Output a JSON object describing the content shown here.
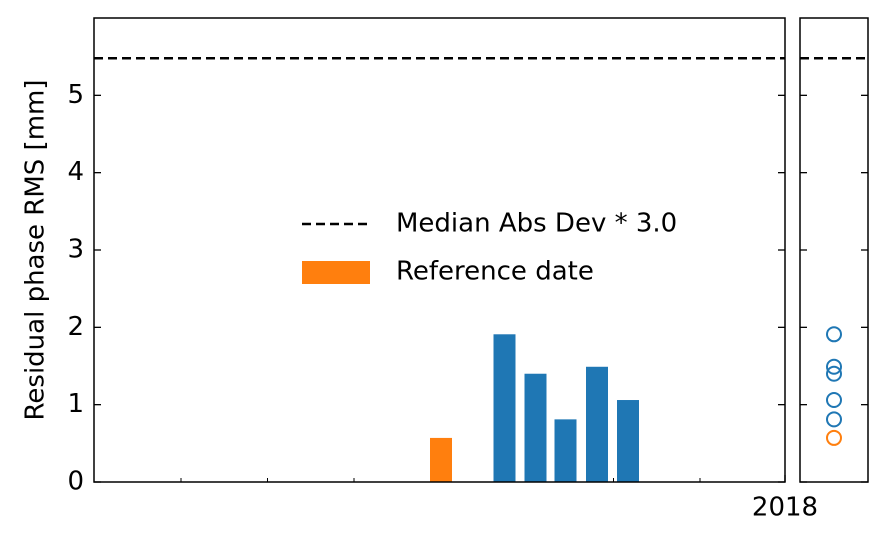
{
  "chart_data": {
    "type": "bar",
    "ylabel": "Residual phase RMS [mm]",
    "categories": [
      null,
      null,
      null,
      null,
      null,
      null
    ],
    "values": [
      0.57,
      1.91,
      1.4,
      0.81,
      1.49,
      1.06
    ],
    "colors": [
      "#ff7f0e",
      "#1f77b4",
      "#1f77b4",
      "#1f77b4",
      "#1f77b4",
      "#1f77b4"
    ],
    "threshold": {
      "value": 5.48,
      "label": "Median Abs Dev * 3.0",
      "color": "#000000",
      "style": "dashed"
    },
    "reference": {
      "label": "Reference date",
      "color": "#ff7f0e"
    },
    "x_end_label": "2018",
    "ylim": [
      0,
      6
    ],
    "yticks": [
      0,
      1,
      2,
      3,
      4,
      5
    ],
    "side_panel": "scatter"
  }
}
